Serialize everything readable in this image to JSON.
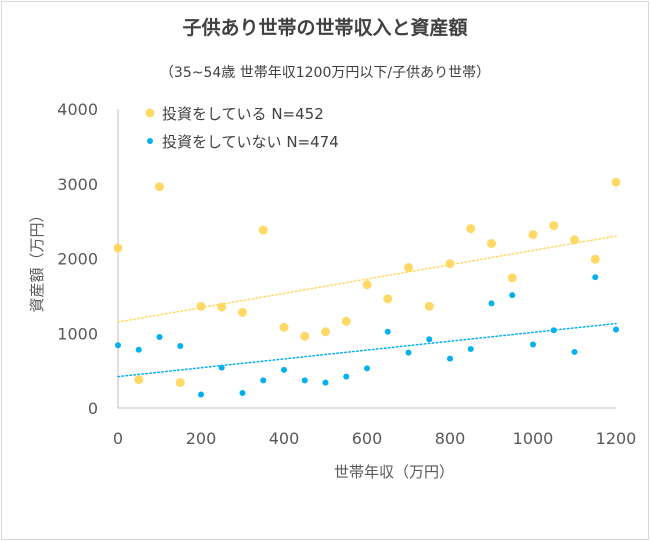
{
  "chart_data": {
    "type": "scatter",
    "title": "子供あり世帯の世帯収入と資産額",
    "subtitle": "（35~54歳 世帯年収1200万円以下/子供あり世帯）",
    "xlabel": "世帯年収（万円）",
    "ylabel": "資産額（万円）",
    "xlim": [
      0,
      1200
    ],
    "ylim": [
      0,
      4000
    ],
    "xticks": [
      "0",
      "200",
      "400",
      "600",
      "800",
      "1000",
      "1200"
    ],
    "yticks": [
      "0",
      "1000",
      "2000",
      "3000",
      "4000"
    ],
    "xtick_values": [
      0,
      200,
      400,
      600,
      800,
      1000,
      1200
    ],
    "ytick_values": [
      0,
      1000,
      2000,
      3000,
      4000
    ],
    "legend_position": "top-left",
    "series": [
      {
        "name": "投資をしている N=452",
        "color": "#ffd966",
        "marker_size": 4.5,
        "trendline": [
          [
            0,
            1150
          ],
          [
            1200,
            2300
          ]
        ],
        "points": [
          [
            0,
            2140
          ],
          [
            50,
            380
          ],
          [
            100,
            2960
          ],
          [
            150,
            340
          ],
          [
            200,
            1360
          ],
          [
            250,
            1350
          ],
          [
            300,
            1280
          ],
          [
            350,
            2380
          ],
          [
            400,
            1080
          ],
          [
            450,
            960
          ],
          [
            500,
            1020
          ],
          [
            550,
            1160
          ],
          [
            600,
            1650
          ],
          [
            650,
            1460
          ],
          [
            700,
            1880
          ],
          [
            750,
            1360
          ],
          [
            800,
            1930
          ],
          [
            850,
            2400
          ],
          [
            900,
            2200
          ],
          [
            950,
            1740
          ],
          [
            1000,
            2320
          ],
          [
            1050,
            2440
          ],
          [
            1100,
            2250
          ],
          [
            1150,
            1990
          ],
          [
            1200,
            3020
          ]
        ]
      },
      {
        "name": "投資をしていない N=474",
        "color": "#00b0f0",
        "marker_size": 3,
        "trendline": [
          [
            0,
            420
          ],
          [
            1200,
            1130
          ]
        ],
        "points": [
          [
            0,
            840
          ],
          [
            50,
            780
          ],
          [
            100,
            950
          ],
          [
            150,
            830
          ],
          [
            200,
            180
          ],
          [
            250,
            540
          ],
          [
            300,
            200
          ],
          [
            350,
            370
          ],
          [
            400,
            510
          ],
          [
            450,
            370
          ],
          [
            500,
            340
          ],
          [
            550,
            420
          ],
          [
            600,
            530
          ],
          [
            650,
            1020
          ],
          [
            700,
            740
          ],
          [
            750,
            920
          ],
          [
            800,
            660
          ],
          [
            850,
            790
          ],
          [
            900,
            1400
          ],
          [
            950,
            1510
          ],
          [
            1000,
            850
          ],
          [
            1050,
            1040
          ],
          [
            1100,
            750
          ],
          [
            1150,
            1750
          ],
          [
            1200,
            1050
          ]
        ]
      }
    ]
  }
}
